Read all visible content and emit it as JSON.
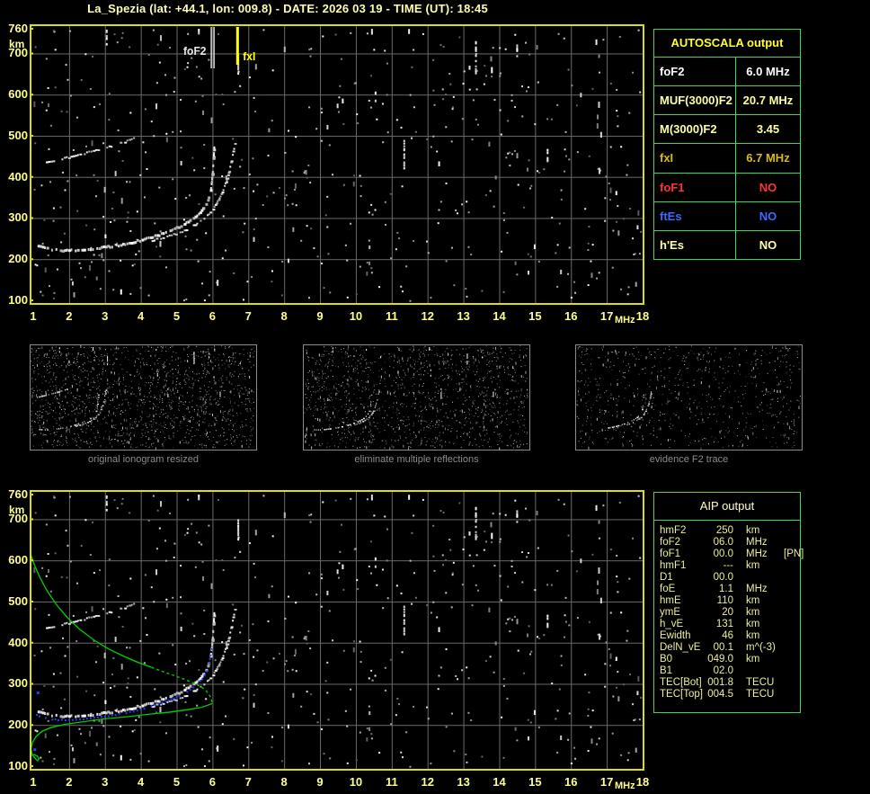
{
  "title": "La_Spezia (lat: +44.1, lon: 009.8) - DATE: 2026 03 19 - TIME (UT): 18:45",
  "autoscala_table": {
    "header": "AUTOSCALA output",
    "rows": [
      {
        "label": "foF2",
        "value": "6.0 MHz",
        "color": "#ffffff"
      },
      {
        "label": "MUF(3000)F2",
        "value": "20.7 MHz",
        "color": "#ffffa0"
      },
      {
        "label": "M(3000)F2",
        "value": "3.45",
        "color": "#ffffa0"
      },
      {
        "label": "fxI",
        "value": "6.7 MHz",
        "color": "#d8bc14"
      },
      {
        "label": "foF1",
        "value": "NO",
        "color": "#ff3232"
      },
      {
        "label": "ftEs",
        "value": "NO",
        "color": "#3a6aff"
      },
      {
        "label": "h'Es",
        "value": "NO",
        "color": "#ffffa0"
      }
    ]
  },
  "aip_table": {
    "header": "AIP output",
    "rows": [
      {
        "label": "hmF2",
        "value": "250",
        "unit": "km",
        "extra": ""
      },
      {
        "label": "foF2",
        "value": "06.0",
        "unit": "MHz",
        "extra": ""
      },
      {
        "label": "foF1",
        "value": "00.0",
        "unit": "MHz",
        "extra": "[PN]"
      },
      {
        "label": "hmF1",
        "value": "---",
        "unit": "km",
        "extra": ""
      },
      {
        "label": "D1",
        "value": "00.0",
        "unit": "",
        "extra": ""
      },
      {
        "label": "foE",
        "value": "1.1",
        "unit": "MHz",
        "extra": ""
      },
      {
        "label": "hmE",
        "value": "110",
        "unit": "km",
        "extra": ""
      },
      {
        "label": "ymE",
        "value": "20",
        "unit": "km",
        "extra": ""
      },
      {
        "label": "h_vE",
        "value": "131",
        "unit": "km",
        "extra": ""
      },
      {
        "label": "Ewidth",
        "value": "46",
        "unit": "km",
        "extra": ""
      },
      {
        "label": "DelN_vE",
        "value": "00.1",
        "unit": "m^(-3)",
        "extra": ""
      },
      {
        "label": "B0",
        "value": "049.0",
        "unit": "km",
        "extra": ""
      },
      {
        "label": "B1",
        "value": "02.0",
        "unit": "",
        "extra": ""
      },
      {
        "label": "TEC[Bot]",
        "value": "001.8",
        "unit": "TECU",
        "extra": ""
      },
      {
        "label": "TEC[Top]",
        "value": "004.5",
        "unit": "TECU",
        "extra": ""
      }
    ]
  },
  "thumbnails": [
    {
      "caption": "original ionogram resized",
      "seed": 21,
      "noise": 1600,
      "layers": [
        {
          "series": "second_hop_trace"
        },
        {
          "series": "f2_ordinary_trace"
        },
        {
          "series": "f2_extraordinary_trace"
        }
      ],
      "streaks": true
    },
    {
      "caption": "eliminate multiple reflections",
      "seed": 22,
      "noise": 1300,
      "layers": [
        {
          "series": "f2_ordinary_trace"
        },
        {
          "series": "f2_extraordinary_trace"
        }
      ],
      "streaks": true
    },
    {
      "caption": "evidence F2 trace",
      "seed": 23,
      "noise": 750,
      "layers": [
        {
          "series": "f2_ordinary_trace",
          "min_f": 3.2
        },
        {
          "series": "f2_extraordinary_trace",
          "min_f": 4.5
        }
      ],
      "streaks": false
    }
  ],
  "chart_data": {
    "type": "scatter",
    "x_axis": {
      "label": "MHz",
      "min": 1,
      "max": 18,
      "ticks": [
        1,
        2,
        3,
        4,
        5,
        6,
        7,
        8,
        9,
        10,
        11,
        12,
        13,
        14,
        15,
        16,
        17,
        18
      ]
    },
    "y_axis": {
      "label": "km",
      "min": 100,
      "max": 760,
      "ticks": [
        760,
        700,
        600,
        500,
        400,
        300,
        200,
        100
      ]
    },
    "grid": true,
    "colors": {
      "plot_border": "#e0e000",
      "grid": "#6a6a6a",
      "axis_text": "#ffff8c",
      "profile": "#00c800",
      "scaled_trace": "#2b3cff",
      "table_border": "#3fd95a"
    },
    "ionogram_series": {
      "f2_ordinary_trace": {
        "color": "#ffffff",
        "points": [
          [
            1.12,
            232
          ],
          [
            1.3,
            227
          ],
          [
            1.5,
            224
          ],
          [
            1.8,
            222
          ],
          [
            2.1,
            222
          ],
          [
            2.4,
            224
          ],
          [
            2.7,
            227
          ],
          [
            3.0,
            230
          ],
          [
            3.3,
            234
          ],
          [
            3.6,
            239
          ],
          [
            3.9,
            245
          ],
          [
            4.2,
            252
          ],
          [
            4.5,
            260
          ],
          [
            4.8,
            270
          ],
          [
            5.1,
            281
          ],
          [
            5.4,
            296
          ],
          [
            5.6,
            310
          ],
          [
            5.75,
            326
          ],
          [
            5.85,
            344
          ],
          [
            5.92,
            365
          ],
          [
            5.96,
            390
          ],
          [
            5.99,
            420
          ],
          [
            6.01,
            450
          ],
          [
            6.03,
            475
          ]
        ]
      },
      "f2_extraordinary_trace": {
        "color": "#e8e8e8",
        "points": [
          [
            4.3,
            246
          ],
          [
            4.6,
            252
          ],
          [
            4.9,
            260
          ],
          [
            5.2,
            270
          ],
          [
            5.5,
            284
          ],
          [
            5.8,
            302
          ],
          [
            6.0,
            322
          ],
          [
            6.15,
            344
          ],
          [
            6.28,
            368
          ],
          [
            6.38,
            392
          ],
          [
            6.46,
            418
          ],
          [
            6.52,
            445
          ],
          [
            6.58,
            470
          ],
          [
            6.63,
            492
          ]
        ]
      },
      "second_hop_trace": {
        "color": "#d8d8d8",
        "points": [
          [
            1.35,
            435
          ],
          [
            1.6,
            440
          ],
          [
            1.85,
            445
          ],
          [
            2.1,
            450
          ],
          [
            2.35,
            456
          ],
          [
            2.6,
            461
          ],
          [
            2.85,
            467
          ],
          [
            3.1,
            473
          ],
          [
            3.35,
            480
          ],
          [
            3.6,
            487
          ],
          [
            3.85,
            494
          ]
        ]
      }
    },
    "rfi_streaks": [
      {
        "f": 3.05,
        "km": [
          722,
          758
        ]
      },
      {
        "f": 5.62,
        "km": [
          748,
          760
        ]
      },
      {
        "f": 6.72,
        "km": [
          652,
          700
        ]
      },
      {
        "f": 10.45,
        "km": [
          744,
          760
        ]
      },
      {
        "f": 10.55,
        "km": [
          578,
          614
        ]
      },
      {
        "f": 11.35,
        "km": [
          420,
          490
        ]
      },
      {
        "f": 13.35,
        "km": [
          656,
          730
        ]
      },
      {
        "f": 14.5,
        "km": [
          690,
          722
        ]
      },
      {
        "f": 15.35,
        "km": [
          440,
          468
        ]
      }
    ],
    "noise": {
      "seed": 12345,
      "count": 560
    },
    "top_plot": {
      "markers": [
        {
          "name": "foF2",
          "f": 6.0,
          "color": "#e8e8e8",
          "style": "double-line"
        },
        {
          "name": "fxI",
          "f": 6.7,
          "color": "#ffff00",
          "style": "thick-line"
        }
      ]
    },
    "bottom_plot": {
      "profile_upper": {
        "color": "#00c800",
        "dashed_from_index": 11,
        "points": [
          [
            0.94,
            612
          ],
          [
            1.05,
            585
          ],
          [
            1.2,
            556
          ],
          [
            1.4,
            524
          ],
          [
            1.65,
            492
          ],
          [
            1.95,
            461
          ],
          [
            2.3,
            432
          ],
          [
            2.7,
            406
          ],
          [
            3.1,
            385
          ],
          [
            3.5,
            368
          ],
          [
            3.9,
            353
          ],
          [
            4.3,
            340
          ],
          [
            4.7,
            327
          ],
          [
            5.1,
            315
          ],
          [
            5.5,
            301
          ],
          [
            5.8,
            286
          ],
          [
            5.95,
            268
          ],
          [
            6.0,
            252
          ]
        ]
      },
      "profile_lower": {
        "color": "#00c800",
        "points": [
          [
            6.0,
            252
          ],
          [
            5.7,
            243
          ],
          [
            5.3,
            237
          ],
          [
            4.8,
            231
          ],
          [
            4.2,
            226
          ],
          [
            3.6,
            220
          ],
          [
            3.0,
            215
          ],
          [
            2.4,
            208
          ],
          [
            1.9,
            202
          ],
          [
            1.5,
            194
          ],
          [
            1.25,
            185
          ],
          [
            1.08,
            172
          ],
          [
            0.98,
            158
          ],
          [
            0.94,
            143
          ],
          [
            0.96,
            130
          ],
          [
            1.04,
            120
          ],
          [
            1.12,
            113
          ],
          [
            1.16,
            117
          ],
          [
            1.12,
            124
          ],
          [
            1.03,
            128
          ],
          [
            0.95,
            126
          ]
        ]
      },
      "scaled_trace": {
        "color": "#2b3cff",
        "points": [
          [
            1.1,
            225
          ],
          [
            1.25,
            218
          ],
          [
            1.45,
            214
          ],
          [
            1.7,
            212
          ],
          [
            2.0,
            212
          ],
          [
            2.3,
            214
          ],
          [
            2.6,
            216
          ],
          [
            2.9,
            219
          ],
          [
            3.2,
            223
          ],
          [
            3.5,
            228
          ],
          [
            3.8,
            233
          ],
          [
            4.1,
            240
          ],
          [
            4.4,
            248
          ],
          [
            4.7,
            257
          ],
          [
            5.0,
            268
          ],
          [
            5.3,
            281
          ],
          [
            5.55,
            296
          ],
          [
            5.72,
            312
          ],
          [
            5.84,
            330
          ],
          [
            5.91,
            350
          ],
          [
            5.95,
            368
          ],
          [
            5.98,
            384
          ],
          [
            6.0,
            397
          ]
        ],
        "stray_points": [
          [
            1.12,
            279
          ],
          [
            1.03,
            141
          ]
        ]
      }
    }
  }
}
